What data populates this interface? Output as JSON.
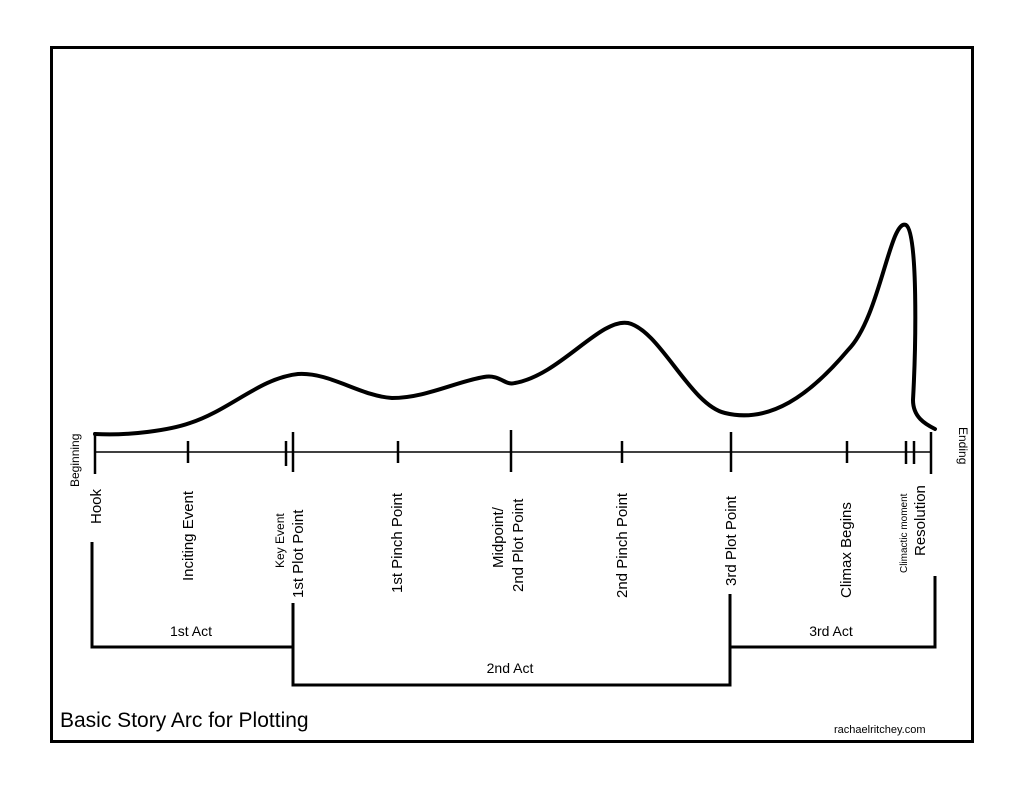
{
  "diagram": {
    "title": "Basic Story Arc for Plotting",
    "credit": "rachaelritchey.com",
    "timeline": {
      "start_label": "Beginning",
      "end_label": "Ending"
    },
    "points": [
      {
        "id": "hook",
        "label": "Hook"
      },
      {
        "id": "inciting-event",
        "label": "Inciting Event"
      },
      {
        "id": "key-event",
        "label": "Key Event"
      },
      {
        "id": "first-plot-point",
        "label": "1st Plot Point"
      },
      {
        "id": "first-pinch-point",
        "label": "1st Pinch Point"
      },
      {
        "id": "midpoint",
        "label_line1": "Midpoint/",
        "label_line2": "2nd Plot Point"
      },
      {
        "id": "second-pinch-point",
        "label": "2nd Pinch Point"
      },
      {
        "id": "third-plot-point",
        "label": "3rd Plot Point"
      },
      {
        "id": "climax-begins",
        "label": "Climax Begins"
      },
      {
        "id": "climactic-moment",
        "label": "Climactic moment"
      },
      {
        "id": "resolution",
        "label": "Resolution"
      }
    ],
    "acts": [
      {
        "id": "act-1",
        "label": "1st Act"
      },
      {
        "id": "act-2",
        "label": "2nd Act"
      },
      {
        "id": "act-3",
        "label": "3rd Act"
      }
    ]
  }
}
